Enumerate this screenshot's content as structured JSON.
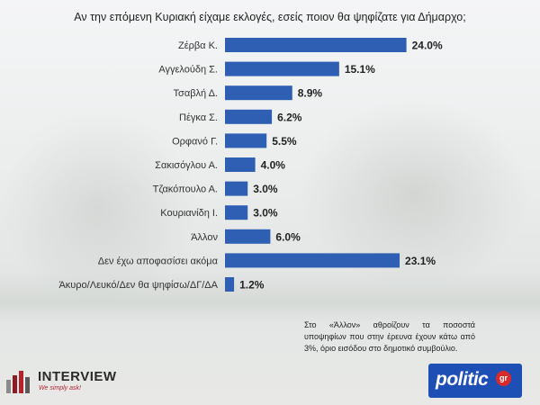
{
  "title": "Αν την επόμενη Κυριακή είχαμε εκλογές, εσείς ποιον θα ψηφίζατε για Δήμαρχο;",
  "chart_data": {
    "type": "bar",
    "orientation": "horizontal",
    "title": "Αν την επόμενη Κυριακή είχαμε εκλογές, εσείς ποιον θα ψηφίζατε για Δήμαρχο;",
    "categories": [
      "Ζέρβα Κ.",
      "Αγγελούδη Σ.",
      "Τσαβλή Δ.",
      "Πέγκα Σ.",
      "Ορφανό Γ.",
      "Σακισόγλου Α.",
      "Τζακόπουλο Α.",
      "Κουριανίδη Ι.",
      "Άλλον",
      "Δεν έχω αποφασίσει ακόμα",
      "Άκυρο/Λευκό/Δεν θα ψηφίσω/ΔΓ/ΔΑ"
    ],
    "values": [
      24.0,
      15.1,
      8.9,
      6.2,
      5.5,
      4.0,
      3.0,
      3.0,
      6.0,
      23.1,
      1.2
    ],
    "value_labels": [
      "24.0%",
      "15.1%",
      "8.9%",
      "6.2%",
      "5.5%",
      "4.0%",
      "3.0%",
      "3.0%",
      "6.0%",
      "23.1%",
      "1.2%"
    ],
    "xlabel": "",
    "ylabel": "",
    "xlim": [
      0,
      25
    ],
    "grid": false,
    "bar_color": "#2f5fb3"
  },
  "note": "Στο «Άλλον» αθροίζουν τα ποσοστά υποψηφίων που στην έρευνα έχουν κάτω από 3%, όριο εισόδου στο δημοτικό συμβούλιο.",
  "logos": {
    "interview_name": "INTERVIEW",
    "interview_tagline": "We simply ask!",
    "politic_name": "politic",
    "politic_suffix": "gr",
    "interview_color": "#b3242a",
    "politic_color": "#1e4fb5"
  }
}
